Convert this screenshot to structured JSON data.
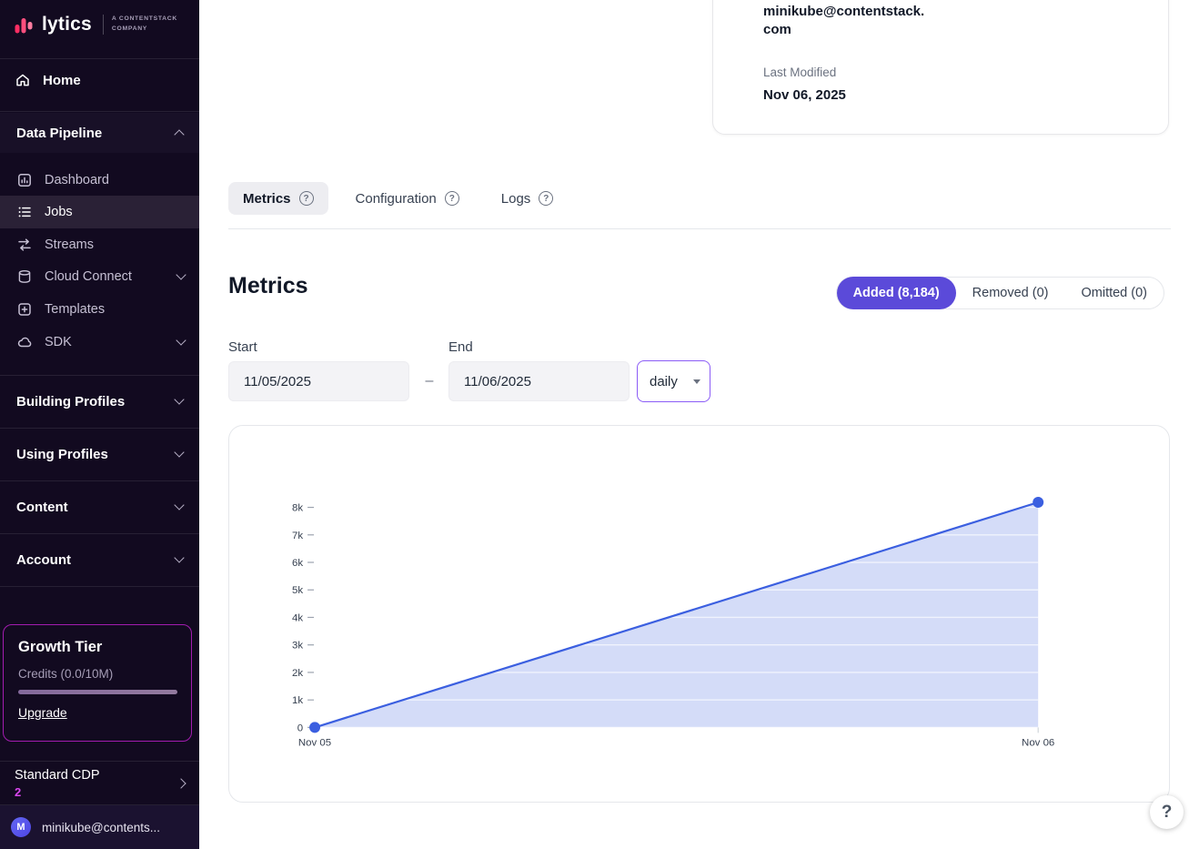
{
  "colors": {
    "sidebar_bg": "#120a20",
    "accent_purple": "#5b4ad9",
    "tier_border": "#a21caf",
    "interval_border": "#8b5cf6",
    "plan_count_pink": "#d946ef",
    "chart_line": "#3b5fe0",
    "chart_fill": "rgba(59,95,224,0.22)"
  },
  "icons": {
    "question_glyph": "?"
  },
  "sidebar": {
    "brand": "lytics",
    "brand_sub_line1": "A CONTENTSTACK",
    "brand_sub_line2": "COMPANY",
    "home_label": "Home",
    "data_pipeline_label": "Data Pipeline",
    "pipeline_items": [
      {
        "label": "Dashboard",
        "active": false
      },
      {
        "label": "Jobs",
        "active": true
      },
      {
        "label": "Streams",
        "active": false
      },
      {
        "label": "Cloud Connect",
        "active": false,
        "expandable": true
      },
      {
        "label": "Templates",
        "active": false
      },
      {
        "label": "SDK",
        "active": false,
        "expandable": true
      }
    ],
    "sections": [
      "Building Profiles",
      "Using Profiles",
      "Content",
      "Account"
    ],
    "growth_tier": {
      "title": "Growth Tier",
      "credits": "Credits (0.0/10M)",
      "upgrade": "Upgrade"
    },
    "plan": {
      "name": "Standard CDP",
      "count": "2"
    },
    "user": {
      "initial": "M",
      "email": "minikube@contents..."
    }
  },
  "details_card": {
    "email_line1": "minikube@contentstack.",
    "email_line2": "com",
    "last_modified_label": "Last Modified",
    "last_modified_value": "Nov 06, 2025"
  },
  "tabs": [
    {
      "label": "Metrics",
      "active": true
    },
    {
      "label": "Configuration",
      "active": false
    },
    {
      "label": "Logs",
      "active": false
    }
  ],
  "metrics": {
    "title": "Metrics",
    "segments": [
      {
        "label": "Added (8,184)",
        "active": true
      },
      {
        "label": "Removed (0)",
        "active": false
      },
      {
        "label": "Omitted (0)",
        "active": false
      }
    ],
    "start_label": "Start",
    "start_value": "11/05/2025",
    "range_separator": "–",
    "end_label": "End",
    "end_value": "11/06/2025",
    "interval_value": "daily"
  },
  "chart_data": {
    "type": "area",
    "title": "",
    "x": [
      "Nov 05",
      "Nov 06"
    ],
    "series": [
      {
        "name": "Added",
        "values": [
          0,
          8184
        ]
      }
    ],
    "ylim": [
      0,
      8000
    ],
    "ytick_values": [
      8000,
      7000,
      6000,
      5000,
      4000,
      3000,
      2000,
      1000,
      0
    ],
    "ytick_labels": [
      "8k",
      "7k",
      "6k",
      "5k",
      "4k",
      "3k",
      "2k",
      "1k",
      "0"
    ],
    "xlabel": "",
    "ylabel": "",
    "legend": "none",
    "grid": "horizontal-over-fill",
    "line_color": "#3b5fe0",
    "fill_color": "rgba(59,95,224,0.22)",
    "marker_color": "#3b5fe0"
  },
  "help": {
    "glyph": "?"
  }
}
